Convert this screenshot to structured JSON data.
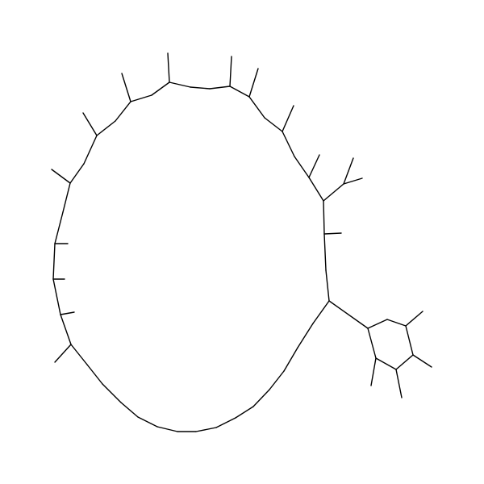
{
  "structure": {
    "kind": "skeletal-formula",
    "stroke_color": "#000000",
    "background_color": "#ffffff",
    "large_ring_atom_count": 38,
    "small_ring_atom_count": 6,
    "methyl_branch_count": 22,
    "isopropyl_branch_count": 1,
    "ring_link_bond_count": 1
  }
}
